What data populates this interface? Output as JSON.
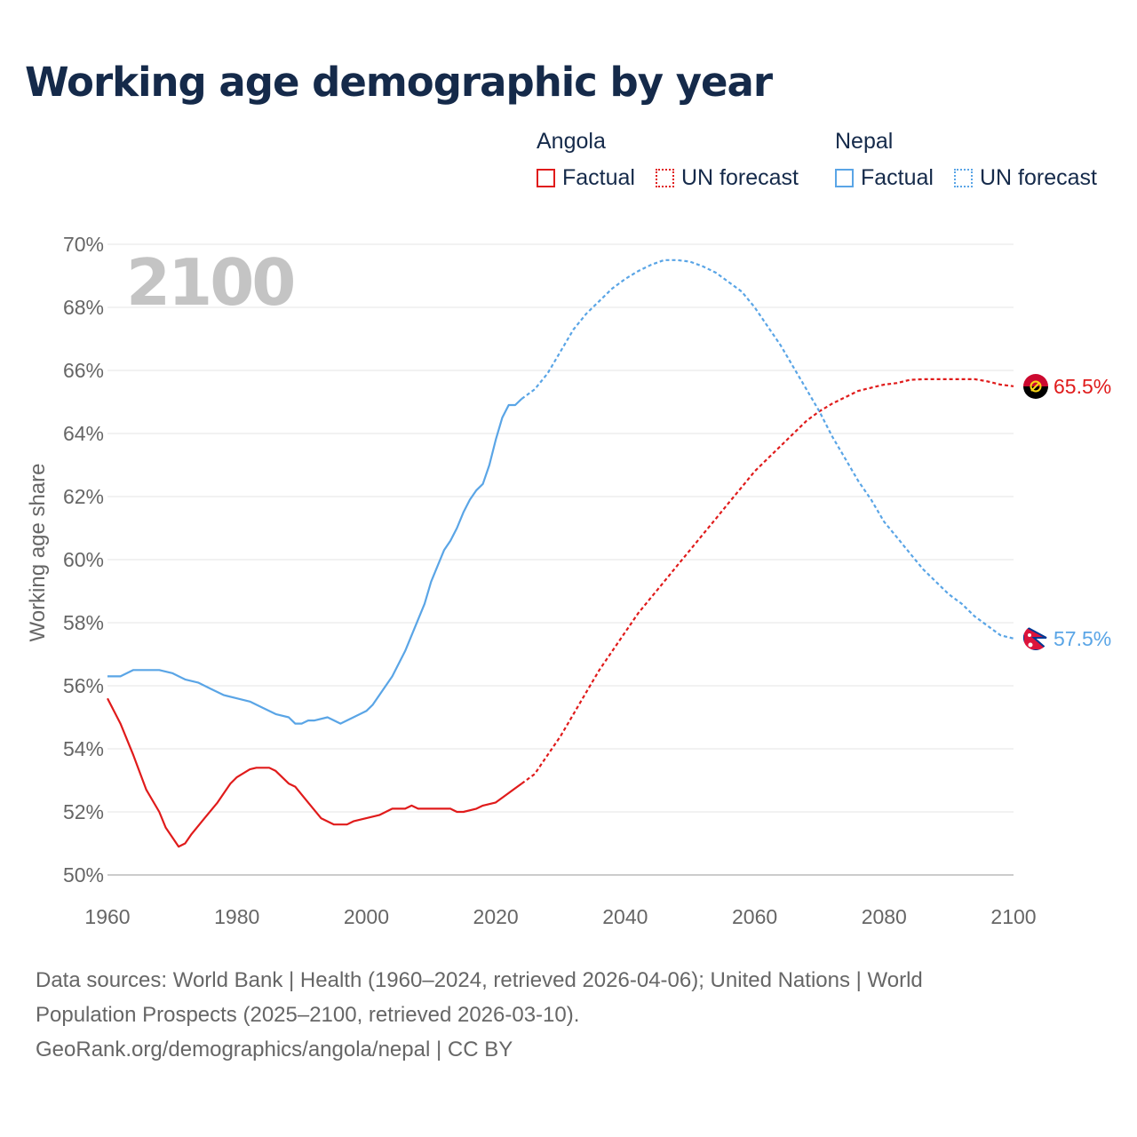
{
  "title": "Working age demographic by year",
  "legend": {
    "groups": [
      {
        "name": "Angola",
        "color": "#e01b1b",
        "items": [
          {
            "label": "Factual",
            "style": "solid"
          },
          {
            "label": "UN forecast",
            "style": "dotted"
          }
        ]
      },
      {
        "name": "Nepal",
        "color": "#5aa5e6",
        "items": [
          {
            "label": "Factual",
            "style": "solid"
          },
          {
            "label": "UN forecast",
            "style": "dotted"
          }
        ]
      }
    ]
  },
  "footer": {
    "line1": "Data sources: World Bank | Health (1960–2024, retrieved 2026-04-06); United Nations | World",
    "line2": "Population Prospects (2025–2100, retrieved 2026-03-10).",
    "line3": "GeoRank.org/demographics/angola/nepal | CC BY"
  },
  "chart_data": {
    "type": "line",
    "title": "Working age demographic by year",
    "xlabel": "",
    "ylabel": "Working age share",
    "xlim": [
      1960,
      2100
    ],
    "ylim": [
      50,
      70
    ],
    "x_ticks": [
      "1960",
      "1980",
      "2000",
      "2020",
      "2040",
      "2060",
      "2080",
      "2100"
    ],
    "y_ticks": [
      "50%",
      "52%",
      "54%",
      "56%",
      "58%",
      "60%",
      "62%",
      "64%",
      "66%",
      "68%",
      "70%"
    ],
    "year_label": "2100",
    "factual_range": [
      1960,
      2024
    ],
    "forecast_range": [
      2024,
      2100
    ],
    "series": [
      {
        "name": "Angola",
        "color": "#e01b1b",
        "end_label": "65.5%",
        "points": [
          [
            1960,
            55.6
          ],
          [
            1962,
            54.8
          ],
          [
            1964,
            53.8
          ],
          [
            1966,
            52.7
          ],
          [
            1968,
            52.0
          ],
          [
            1969,
            51.5
          ],
          [
            1971,
            50.9
          ],
          [
            1972,
            51.0
          ],
          [
            1973,
            51.3
          ],
          [
            1975,
            51.8
          ],
          [
            1977,
            52.3
          ],
          [
            1979,
            52.9
          ],
          [
            1980,
            53.1
          ],
          [
            1982,
            53.35
          ],
          [
            1983,
            53.4
          ],
          [
            1985,
            53.4
          ],
          [
            1986,
            53.3
          ],
          [
            1988,
            52.9
          ],
          [
            1989,
            52.8
          ],
          [
            1991,
            52.3
          ],
          [
            1993,
            51.8
          ],
          [
            1995,
            51.6
          ],
          [
            1997,
            51.6
          ],
          [
            1998,
            51.7
          ],
          [
            2000,
            51.8
          ],
          [
            2002,
            51.9
          ],
          [
            2004,
            52.1
          ],
          [
            2006,
            52.1
          ],
          [
            2007,
            52.2
          ],
          [
            2008,
            52.1
          ],
          [
            2010,
            52.1
          ],
          [
            2012,
            52.1
          ],
          [
            2013,
            52.1
          ],
          [
            2014,
            52.0
          ],
          [
            2015,
            52.0
          ],
          [
            2017,
            52.1
          ],
          [
            2018,
            52.2
          ],
          [
            2020,
            52.3
          ],
          [
            2022,
            52.6
          ],
          [
            2024,
            52.9
          ],
          [
            2026,
            53.2
          ],
          [
            2028,
            53.8
          ],
          [
            2030,
            54.4
          ],
          [
            2032,
            55.1
          ],
          [
            2034,
            55.8
          ],
          [
            2036,
            56.5
          ],
          [
            2038,
            57.1
          ],
          [
            2040,
            57.7
          ],
          [
            2042,
            58.3
          ],
          [
            2044,
            58.8
          ],
          [
            2046,
            59.3
          ],
          [
            2048,
            59.8
          ],
          [
            2050,
            60.3
          ],
          [
            2052,
            60.8
          ],
          [
            2054,
            61.3
          ],
          [
            2056,
            61.8
          ],
          [
            2058,
            62.3
          ],
          [
            2060,
            62.8
          ],
          [
            2062,
            63.2
          ],
          [
            2064,
            63.6
          ],
          [
            2066,
            64.0
          ],
          [
            2068,
            64.4
          ],
          [
            2070,
            64.7
          ],
          [
            2072,
            64.95
          ],
          [
            2074,
            65.15
          ],
          [
            2076,
            65.35
          ],
          [
            2078,
            65.45
          ],
          [
            2080,
            65.55
          ],
          [
            2082,
            65.6
          ],
          [
            2084,
            65.7
          ],
          [
            2086,
            65.72
          ],
          [
            2088,
            65.72
          ],
          [
            2090,
            65.72
          ],
          [
            2092,
            65.72
          ],
          [
            2094,
            65.72
          ],
          [
            2096,
            65.65
          ],
          [
            2098,
            65.55
          ],
          [
            2100,
            65.5
          ]
        ]
      },
      {
        "name": "Nepal",
        "color": "#5aa5e6",
        "end_label": "57.5%",
        "points": [
          [
            1960,
            56.3
          ],
          [
            1962,
            56.3
          ],
          [
            1964,
            56.5
          ],
          [
            1966,
            56.5
          ],
          [
            1968,
            56.5
          ],
          [
            1970,
            56.4
          ],
          [
            1972,
            56.2
          ],
          [
            1974,
            56.1
          ],
          [
            1976,
            55.9
          ],
          [
            1978,
            55.7
          ],
          [
            1980,
            55.6
          ],
          [
            1982,
            55.5
          ],
          [
            1984,
            55.3
          ],
          [
            1986,
            55.1
          ],
          [
            1988,
            55.0
          ],
          [
            1989,
            54.8
          ],
          [
            1990,
            54.8
          ],
          [
            1991,
            54.9
          ],
          [
            1992,
            54.9
          ],
          [
            1994,
            55.0
          ],
          [
            1996,
            54.8
          ],
          [
            1998,
            55.0
          ],
          [
            2000,
            55.2
          ],
          [
            2001,
            55.4
          ],
          [
            2002,
            55.7
          ],
          [
            2004,
            56.3
          ],
          [
            2006,
            57.1
          ],
          [
            2008,
            58.1
          ],
          [
            2009,
            58.6
          ],
          [
            2010,
            59.3
          ],
          [
            2012,
            60.3
          ],
          [
            2013,
            60.6
          ],
          [
            2014,
            61.0
          ],
          [
            2015,
            61.5
          ],
          [
            2016,
            61.9
          ],
          [
            2017,
            62.2
          ],
          [
            2018,
            62.4
          ],
          [
            2019,
            63.0
          ],
          [
            2020,
            63.8
          ],
          [
            2021,
            64.5
          ],
          [
            2022,
            64.9
          ],
          [
            2023,
            64.9
          ],
          [
            2024,
            65.1
          ],
          [
            2026,
            65.4
          ],
          [
            2028,
            65.9
          ],
          [
            2030,
            66.6
          ],
          [
            2032,
            67.3
          ],
          [
            2034,
            67.8
          ],
          [
            2036,
            68.2
          ],
          [
            2038,
            68.6
          ],
          [
            2040,
            68.9
          ],
          [
            2042,
            69.15
          ],
          [
            2044,
            69.35
          ],
          [
            2046,
            69.5
          ],
          [
            2048,
            69.5
          ],
          [
            2050,
            69.45
          ],
          [
            2052,
            69.3
          ],
          [
            2054,
            69.1
          ],
          [
            2056,
            68.8
          ],
          [
            2058,
            68.5
          ],
          [
            2060,
            68.0
          ],
          [
            2062,
            67.4
          ],
          [
            2064,
            66.8
          ],
          [
            2066,
            66.1
          ],
          [
            2068,
            65.4
          ],
          [
            2070,
            64.7
          ],
          [
            2072,
            63.9
          ],
          [
            2074,
            63.2
          ],
          [
            2076,
            62.5
          ],
          [
            2078,
            61.9
          ],
          [
            2080,
            61.2
          ],
          [
            2082,
            60.7
          ],
          [
            2084,
            60.2
          ],
          [
            2086,
            59.7
          ],
          [
            2088,
            59.3
          ],
          [
            2090,
            58.9
          ],
          [
            2092,
            58.6
          ],
          [
            2094,
            58.2
          ],
          [
            2096,
            57.9
          ],
          [
            2098,
            57.6
          ],
          [
            2100,
            57.5
          ]
        ]
      }
    ]
  }
}
